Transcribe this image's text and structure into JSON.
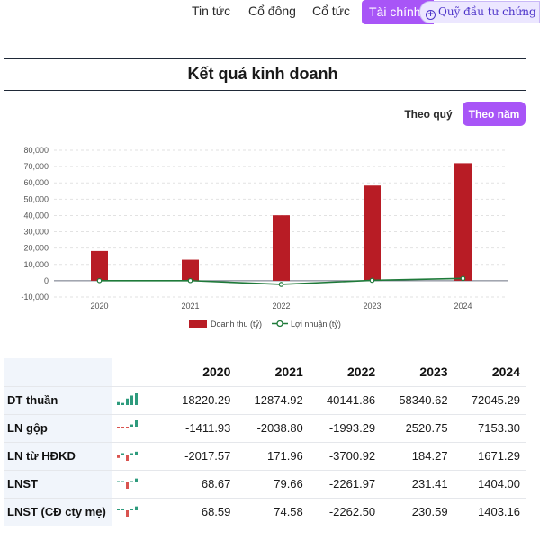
{
  "nav": {
    "items": [
      "Tin tức",
      "Cổ đông",
      "Cổ tức"
    ],
    "active": "Tài chính",
    "fund_chip": "Quỹ đầu tư chứng khoán"
  },
  "section": {
    "title": "Kết quả kinh doanh"
  },
  "toggles": {
    "quarter": "Theo quý",
    "year": "Theo năm",
    "selected": "year"
  },
  "colors": {
    "accent": "#a855f7",
    "revenue_bar": "#b81c25",
    "profit_line": "#1f7a3a",
    "spark_green": "#2e9b7d",
    "spark_red": "#d9534f"
  },
  "chart_data": {
    "type": "bar",
    "categories": [
      "2020",
      "2021",
      "2022",
      "2023",
      "2024"
    ],
    "series": [
      {
        "name": "Doanh thu (tỷ)",
        "type": "bar",
        "values": [
          18220.29,
          12874.92,
          40141.86,
          58340.62,
          72045.29
        ]
      },
      {
        "name": "Lợi nhuận (tỷ)",
        "type": "line",
        "values": [
          68.59,
          74.58,
          -2262.5,
          230.59,
          1403.16
        ]
      }
    ],
    "yticks": [
      "80,000",
      "70,000",
      "60,000",
      "50,000",
      "40,000",
      "30,000",
      "20,000",
      "10,000",
      "0",
      "-10,000"
    ],
    "ylim": [
      -10000,
      80000
    ],
    "grid": true,
    "legend": "bottom"
  },
  "table": {
    "years": [
      "2020",
      "2021",
      "2022",
      "2023",
      "2024"
    ],
    "rows": [
      {
        "label": "DT thuần",
        "values": [
          "18220.29",
          "12874.92",
          "40141.86",
          "58340.62",
          "72045.29"
        ],
        "raw": [
          18220.29,
          12874.92,
          40141.86,
          58340.62,
          72045.29
        ]
      },
      {
        "label": "LN gộp",
        "values": [
          "-1411.93",
          "-2038.80",
          "-1993.29",
          "2520.75",
          "7153.30"
        ],
        "raw": [
          -1411.93,
          -2038.8,
          -1993.29,
          2520.75,
          7153.3
        ]
      },
      {
        "label": "LN từ HĐKD",
        "values": [
          "-2017.57",
          "171.96",
          "-3700.92",
          "184.27",
          "1671.29"
        ],
        "raw": [
          -2017.57,
          171.96,
          -3700.92,
          184.27,
          1671.29
        ]
      },
      {
        "label": "LNST",
        "values": [
          "68.67",
          "79.66",
          "-2261.97",
          "231.41",
          "1404.00"
        ],
        "raw": [
          68.67,
          79.66,
          -2261.97,
          231.41,
          1404.0
        ]
      },
      {
        "label": "LNST (CĐ cty mẹ)",
        "values": [
          "68.59",
          "74.58",
          "-2262.50",
          "230.59",
          "1403.16"
        ],
        "raw": [
          68.59,
          74.58,
          -2262.5,
          230.59,
          1403.16
        ]
      }
    ]
  }
}
